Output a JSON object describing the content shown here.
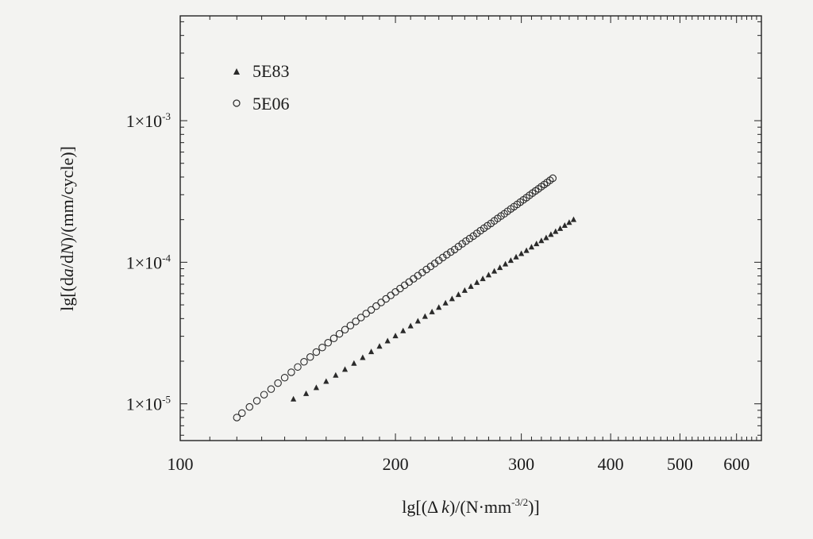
{
  "chart_data": {
    "type": "scatter",
    "xscale": "log",
    "yscale": "log",
    "xlim": [
      100,
      650
    ],
    "ylim": [
      5.5e-06,
      0.0055
    ],
    "grid": false,
    "legend_position": "top-left",
    "xlabel": "lg[(Δk)/(N·mm-3/2)]",
    "xlabel_parts": {
      "pre": "lg[(",
      "delta": "Δ",
      "k": "k",
      "mid": ")/(N·mm",
      "sup": "-3/2",
      "post": ")]"
    },
    "ylabel": "lg[(da/dN)/(mm/cycle)]",
    "ylabel_parts": {
      "pre": "lg[(d",
      "a": "a",
      "mid": "/d",
      "N": "N",
      "post": ")/(mm/cycle)]"
    },
    "x_tick_labels": [
      {
        "value": 100,
        "label": "100"
      },
      {
        "value": 200,
        "label": "200"
      },
      {
        "value": 300,
        "label": "300"
      },
      {
        "value": 400,
        "label": "400"
      },
      {
        "value": 500,
        "label": "500"
      },
      {
        "value": 600,
        "label": "600"
      }
    ],
    "y_tick_labels": [
      {
        "value": 1e-05,
        "mantissa": "1×10",
        "exp": "-5"
      },
      {
        "value": 0.0001,
        "mantissa": "1×10",
        "exp": "-4"
      },
      {
        "value": 0.001,
        "mantissa": "1×10",
        "exp": "-3"
      }
    ],
    "series": [
      {
        "name": "5E83",
        "marker": "triangle",
        "color": "#2a2a2a",
        "x": [
          144,
          150,
          155,
          160,
          165,
          170,
          175,
          180,
          185,
          190,
          195,
          200,
          205,
          210,
          215,
          220,
          225,
          230,
          235,
          240,
          245,
          250,
          255,
          260,
          265,
          270,
          275,
          280,
          285,
          290,
          295,
          300,
          305,
          310,
          315,
          320,
          325,
          330,
          335,
          340,
          345,
          350,
          355
        ],
        "y": [
          1.08e-05,
          1.18e-05,
          1.3e-05,
          1.44e-05,
          1.59e-05,
          1.75e-05,
          1.93e-05,
          2.12e-05,
          2.33e-05,
          2.55e-05,
          2.78e-05,
          3.02e-05,
          3.28e-05,
          3.55e-05,
          3.84e-05,
          4.14e-05,
          4.46e-05,
          4.8e-05,
          5.15e-05,
          5.52e-05,
          5.91e-05,
          6.32e-05,
          6.74e-05,
          7.19e-05,
          7.65e-05,
          8.13e-05,
          8.64e-05,
          9.16e-05,
          9.71e-05,
          0.000103,
          0.000109,
          0.000115,
          0.000121,
          0.000128,
          0.000135,
          0.000142,
          0.000149,
          0.000157,
          0.000165,
          0.000173,
          0.000182,
          0.000191,
          0.0002
        ]
      },
      {
        "name": "5E06",
        "marker": "circle-open",
        "color": "#2a2a2a",
        "x": [
          120,
          122,
          125,
          128,
          131,
          134,
          137,
          140,
          143,
          146,
          149,
          152,
          155,
          158,
          161,
          164,
          167,
          170,
          173,
          176,
          179,
          182,
          185,
          188,
          191,
          194,
          197,
          200,
          203,
          206,
          209,
          212,
          215,
          218,
          221,
          224,
          227,
          230,
          233,
          236,
          239,
          242,
          245,
          248,
          251,
          254,
          257,
          260,
          263,
          266,
          269,
          272,
          275,
          278,
          281,
          284,
          287,
          290,
          293,
          296,
          299,
          302,
          305,
          308,
          311,
          314,
          317,
          320,
          323,
          326,
          329,
          332
        ],
        "y": [
          8e-06,
          8.6e-06,
          9.5e-06,
          1.05e-05,
          1.16e-05,
          1.27e-05,
          1.4e-05,
          1.53e-05,
          1.67e-05,
          1.82e-05,
          1.98e-05,
          2.14e-05,
          2.32e-05,
          2.5e-05,
          2.7e-05,
          2.9e-05,
          3.12e-05,
          3.34e-05,
          3.57e-05,
          3.82e-05,
          4.07e-05,
          4.34e-05,
          4.61e-05,
          4.9e-05,
          5.2e-05,
          5.51e-05,
          5.83e-05,
          6.17e-05,
          6.52e-05,
          6.88e-05,
          7.25e-05,
          7.64e-05,
          8.04e-05,
          8.46e-05,
          8.89e-05,
          9.34e-05,
          9.8e-05,
          0.000103,
          0.000108,
          0.000113,
          0.000118,
          0.000123,
          0.000129,
          0.000135,
          0.000141,
          0.000147,
          0.000153,
          0.00016,
          0.000167,
          0.000174,
          0.000181,
          0.000188,
          0.000196,
          0.000204,
          0.000212,
          0.00022,
          0.000229,
          0.000238,
          0.000247,
          0.000256,
          0.000266,
          0.000276,
          0.000286,
          0.000297,
          0.000308,
          0.000319,
          0.00033,
          0.000342,
          0.000354,
          0.000366,
          0.000379,
          0.000392
        ]
      }
    ]
  }
}
